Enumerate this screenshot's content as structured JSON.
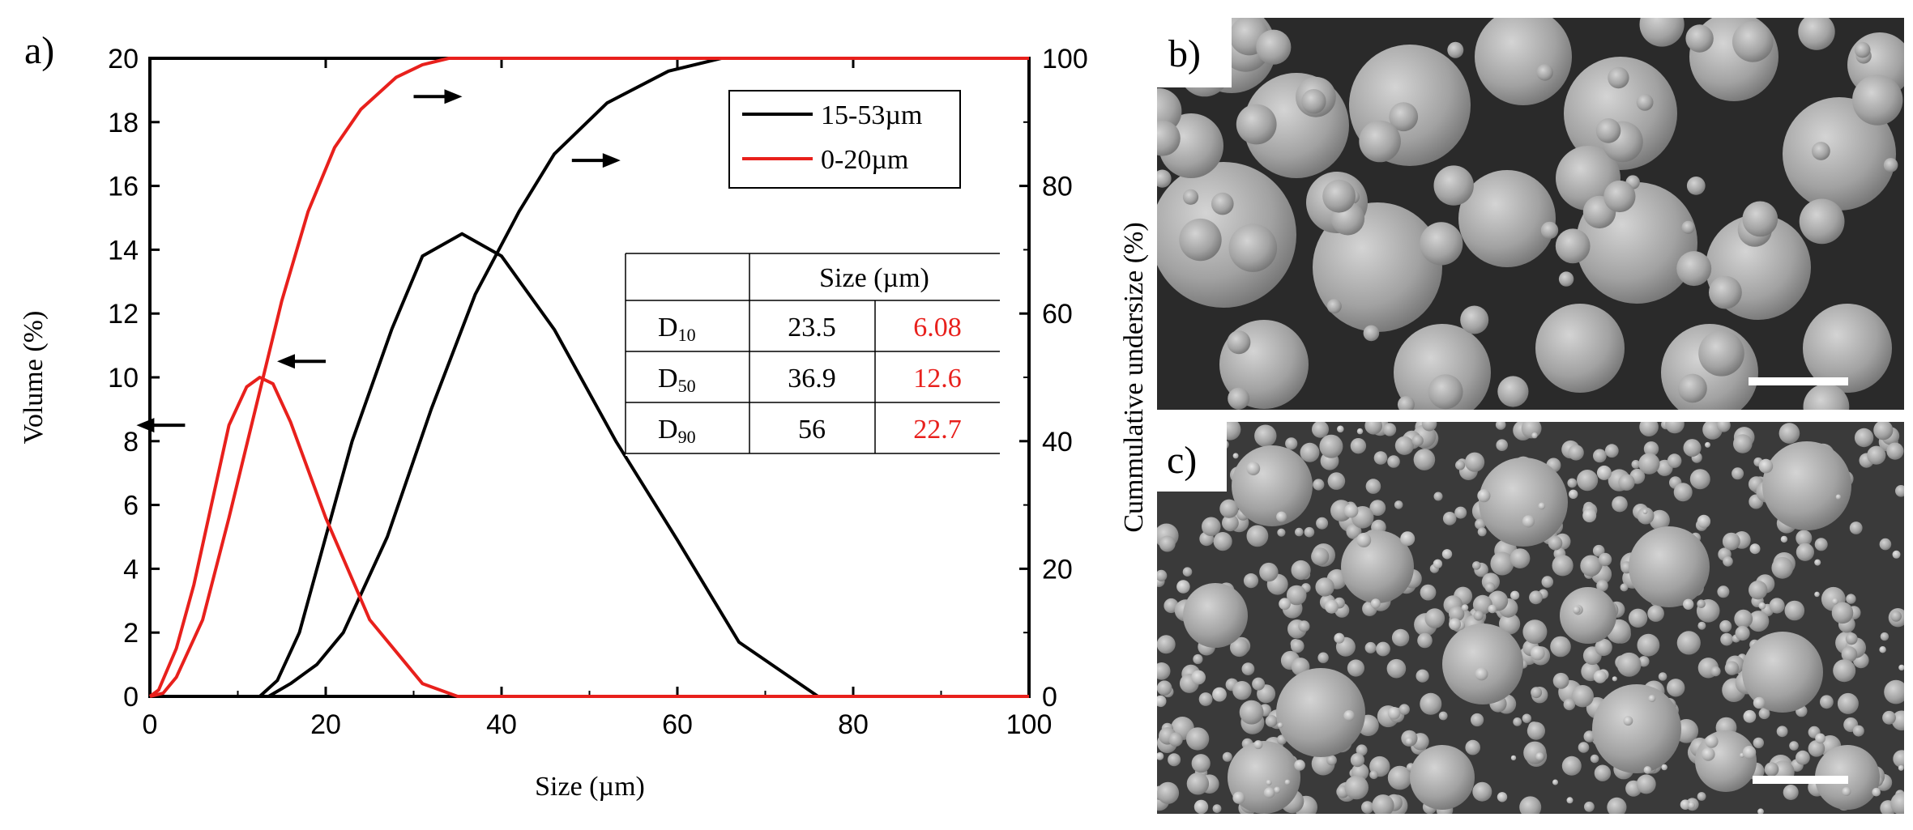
{
  "panel_labels": {
    "a": "a)",
    "b": "b)",
    "c": "c)"
  },
  "chart_data": {
    "type": "line",
    "xlabel": "Size (µm)",
    "ylabel_left": "Volume (%)",
    "ylabel_right": "Cummulative undersize (%)",
    "xlim": [
      0,
      100
    ],
    "ylim_left": [
      0,
      20
    ],
    "ylim_right": [
      0,
      100
    ],
    "x_ticks": [
      0,
      20,
      40,
      60,
      80,
      100
    ],
    "y_ticks_left": [
      0,
      2,
      4,
      6,
      8,
      10,
      12,
      14,
      16,
      18,
      20
    ],
    "y_ticks_right": [
      0,
      20,
      40,
      60,
      80,
      100
    ],
    "legend_position": "top-right",
    "series": [
      {
        "name": "15-53µm",
        "kind": "volume",
        "axis": "left",
        "color": "#000000",
        "x": [
          0,
          12.5,
          14.5,
          17,
          20,
          23,
          27.5,
          31,
          35.5,
          40,
          46,
          53,
          60,
          67,
          76,
          100
        ],
        "y": [
          0,
          0,
          0.5,
          2,
          5,
          8,
          11.5,
          13.8,
          14.5,
          13.8,
          11.5,
          8,
          4.9,
          1.7,
          0,
          0
        ]
      },
      {
        "name": "15-53µm",
        "kind": "cumulative",
        "axis": "right",
        "color": "#000000",
        "x": [
          0,
          13.5,
          16,
          19,
          22,
          27,
          32,
          37,
          42,
          46,
          52,
          59,
          65,
          100
        ],
        "y": [
          0,
          0,
          2,
          5,
          10,
          25,
          45,
          63,
          76,
          85,
          93,
          98,
          100,
          100
        ]
      },
      {
        "name": "0-20µm",
        "kind": "volume",
        "axis": "left",
        "color": "#e8201c",
        "x": [
          0,
          1,
          3,
          5,
          7,
          9,
          11,
          12.5,
          14,
          16,
          20,
          25,
          31,
          35,
          100
        ],
        "y": [
          0,
          0.2,
          1.5,
          3.5,
          6,
          8.5,
          9.7,
          10,
          9.8,
          8.6,
          5.6,
          2.4,
          0.4,
          0,
          0
        ]
      },
      {
        "name": "0-20µm",
        "kind": "cumulative",
        "axis": "right",
        "color": "#e8201c",
        "x": [
          0,
          1.5,
          3,
          6,
          9,
          12,
          15,
          18,
          21,
          24,
          28,
          31,
          34,
          100
        ],
        "y": [
          0,
          0.5,
          3,
          12,
          28,
          45,
          62,
          76,
          86,
          92,
          97,
          99,
          100,
          100
        ]
      }
    ],
    "table": {
      "header": "Size (µm)",
      "rows": [
        {
          "label": "D",
          "sub": "10",
          "a": "23.5",
          "b": "6.08"
        },
        {
          "label": "D",
          "sub": "50",
          "a": "36.9",
          "b": "12.6"
        },
        {
          "label": "D",
          "sub": "90",
          "a": "56",
          "b": "22.7"
        }
      ]
    },
    "arrows": [
      {
        "direction": "right",
        "x": 30,
        "y_left": 18.8
      },
      {
        "direction": "right",
        "x": 48,
        "y_left": 16.8
      },
      {
        "direction": "left",
        "x": 20,
        "y_left": 10.5
      },
      {
        "direction": "left",
        "x": 4,
        "y_left": 8.5
      }
    ]
  },
  "images": {
    "b": {
      "kind": "SEM micrograph, coarse spherical powder"
    },
    "c": {
      "kind": "SEM micrograph, fine spherical powder with satellites"
    }
  }
}
